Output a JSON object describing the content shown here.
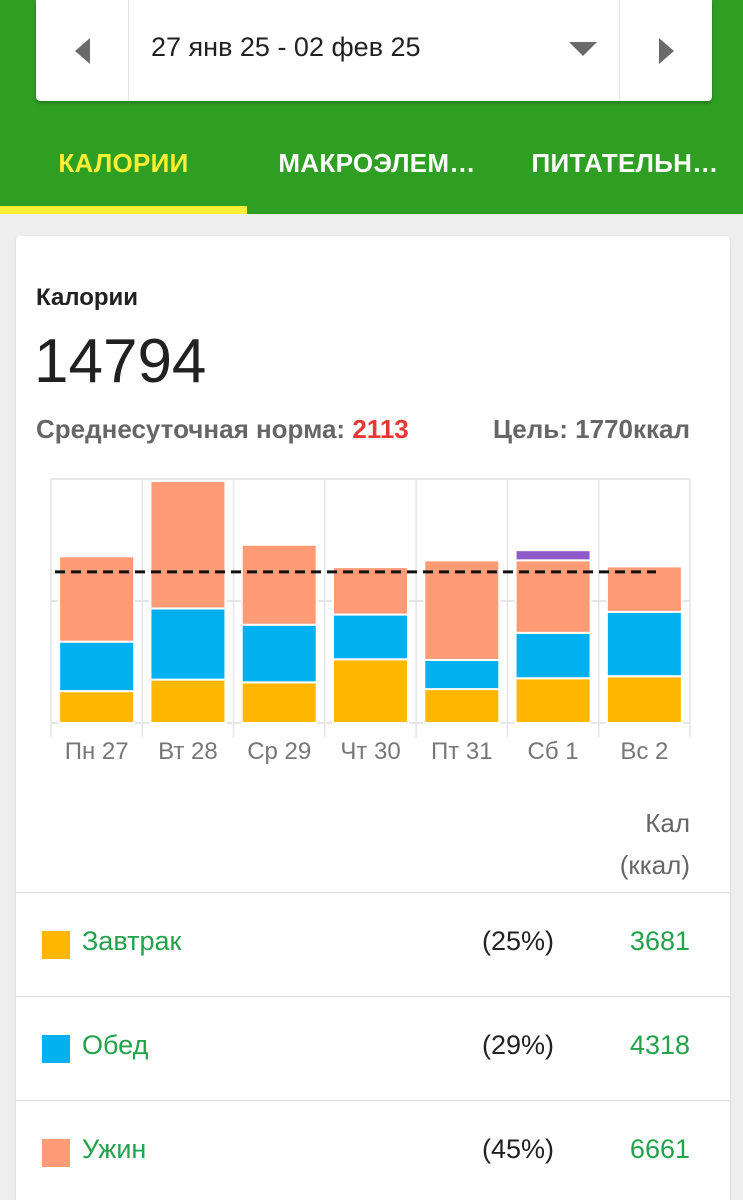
{
  "date_range": {
    "label": "27 янв 25 - 02 фев 25"
  },
  "tabs": [
    {
      "label": "КАЛОРИИ",
      "active": true
    },
    {
      "label": "МАКРОЭЛЕМ…",
      "active": false
    },
    {
      "label": "ПИТАТЕЛЬН…",
      "active": false
    }
  ],
  "card": {
    "title": "Калории",
    "total": "14794",
    "avg_label": "Среднесуточная норма:",
    "avg_value": "2113",
    "goal_text": "Цель: 1770ккал"
  },
  "colors": {
    "brand_green": "#2e9f22",
    "tab_active": "#ffee33",
    "breakfast": "#ffb700",
    "lunch": "#03b0f0",
    "dinner": "#fd9b76",
    "snack": "#8e5bc8",
    "value_green": "#22a24a",
    "avg_red": "#e53935"
  },
  "chart_data": {
    "type": "bar",
    "stacked": true,
    "categories": [
      "Пн 27",
      "Вт 28",
      "Ср 29",
      "Чт 30",
      "Пт 31",
      "Сб 1",
      "Вс 2"
    ],
    "series": [
      {
        "name": "Завтрак",
        "color": "#ffb700",
        "values": [
          470,
          640,
          600,
          940,
          500,
          660,
          690
        ]
      },
      {
        "name": "Обед",
        "color": "#03b0f0",
        "values": [
          730,
          1050,
          850,
          660,
          430,
          670,
          950
        ]
      },
      {
        "name": "Ужин",
        "color": "#fd9b76",
        "values": [
          1260,
          1880,
          1180,
          700,
          1470,
          1070,
          670
        ]
      },
      {
        "color": "#8e5bc8",
        "values": [
          0,
          0,
          0,
          0,
          0,
          150,
          0
        ]
      }
    ],
    "goal_line": 2230,
    "ylim": [
      0,
      3600
    ],
    "gridlines": [
      0,
      1800,
      3600
    ]
  },
  "table": {
    "col_header_line1": "Кал",
    "col_header_line2": "(ккал)",
    "rows": [
      {
        "name": "Завтрак",
        "pct": "(25%)",
        "value": "3681",
        "color": "#ffb700"
      },
      {
        "name": "Обед",
        "pct": "(29%)",
        "value": "4318",
        "color": "#03b0f0"
      },
      {
        "name": "Ужин",
        "pct": "(45%)",
        "value": "6661",
        "color": "#fd9b76"
      }
    ]
  }
}
